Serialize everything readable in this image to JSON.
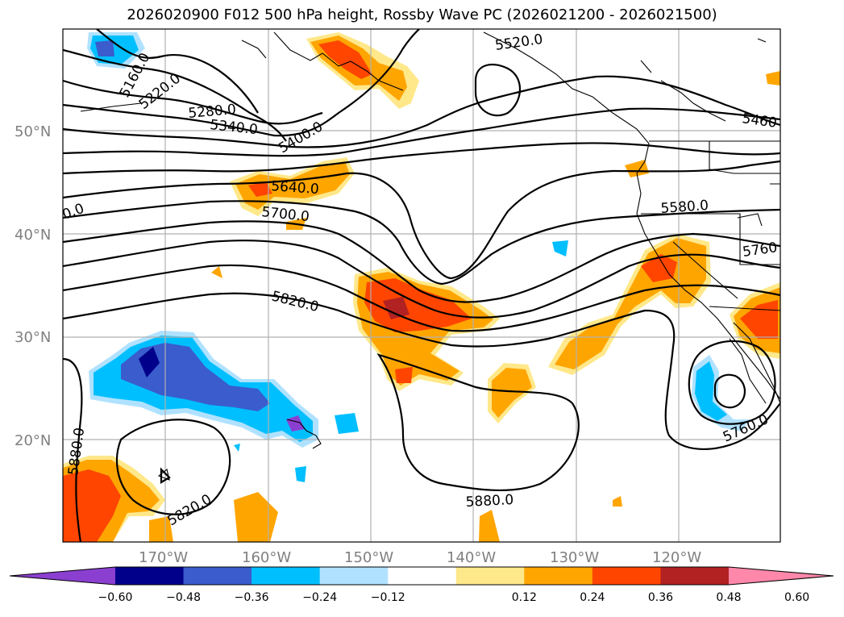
{
  "title": "2026020900 F012 500 hPa height, Rossby Wave PC (2026021200 - 2026021500)",
  "axes": {
    "lat_labels": [
      "50°N",
      "40°N",
      "30°N",
      "20°N"
    ],
    "lon_labels": [
      "170°W",
      "160°W",
      "150°W",
      "140°W",
      "130°W",
      "120°W"
    ]
  },
  "contour_labels": [
    "5160.0",
    "5220.0",
    "5280.0",
    "5340.0",
    "5400.0",
    "5460",
    "5520.0",
    "5640.0",
    "5700.0",
    "5580.0",
    "5760",
    "5820.0",
    "5880.0",
    "5880.0",
    "5820.0",
    "5760.0",
    "0.0"
  ],
  "colorbar": {
    "ticks": [
      "−0.60",
      "−0.48",
      "−0.36",
      "−0.24",
      "−0.12",
      "0.12",
      "0.24",
      "0.36",
      "0.48",
      "0.60"
    ],
    "colors": [
      "#8b3fd0",
      "#00008b",
      "#3a5ccc",
      "#00bfff",
      "#b0e2ff",
      "#ffffff",
      "#ffe88a",
      "#ffa500",
      "#ff4500",
      "#b22222",
      "#ff88aa"
    ]
  },
  "colors": {
    "gridline": "#b0b0b0",
    "axis_label": "#808080"
  }
}
